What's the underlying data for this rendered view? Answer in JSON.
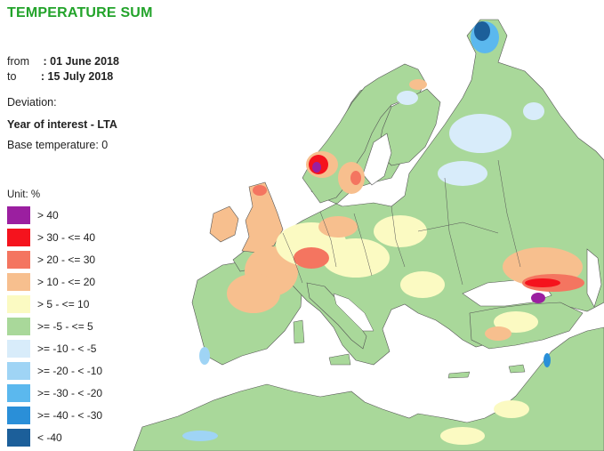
{
  "title": "TEMPERATURE SUM",
  "period": {
    "from_label": "from",
    "from_value": ": 01 June 2018",
    "to_label": "to",
    "to_value": ": 15 July 2018"
  },
  "deviation_label": "Deviation:",
  "comparison": "Year of interest - LTA",
  "base_temperature": "Base temperature: 0",
  "legend": {
    "unit": "Unit:  %",
    "items": [
      {
        "label": "> 40",
        "color": "#9b1fa0"
      },
      {
        "label": "> 30 - <= 40",
        "color": "#f5131d"
      },
      {
        "label": "> 20 - <= 30",
        "color": "#f47560"
      },
      {
        "label": "> 10 - <= 20",
        "color": "#f7bf8e"
      },
      {
        "label": "> 5 - <= 10",
        "color": "#fbfac2"
      },
      {
        "label": ">= -5 - <= 5",
        "color": "#a9d89a"
      },
      {
        "label": ">= -10 - < -5",
        "color": "#d8ecfa"
      },
      {
        "label": ">= -20 - < -10",
        "color": "#9fd4f5"
      },
      {
        "label": ">= -30 - < -20",
        "color": "#5bb8ee"
      },
      {
        "label": ">= -40 - < -30",
        "color": "#2a8fd8"
      },
      {
        "label": "< -40",
        "color": "#1c5f9a"
      }
    ]
  }
}
